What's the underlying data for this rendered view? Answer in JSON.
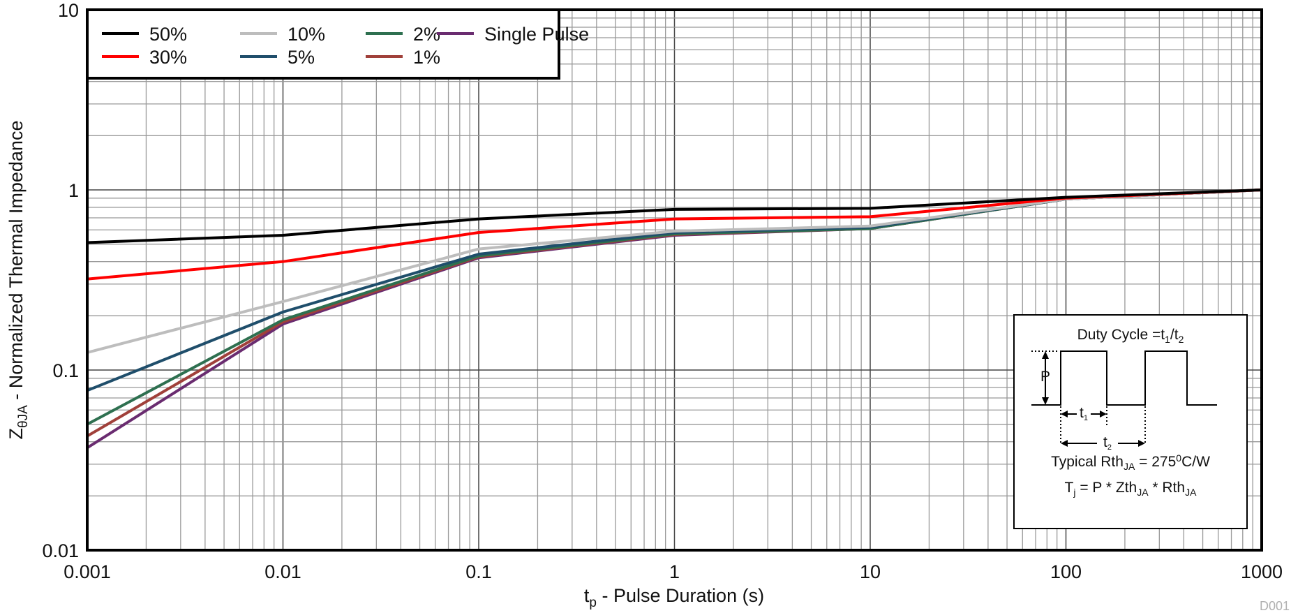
{
  "chart_data": {
    "type": "line",
    "title": "",
    "xlabel": "t_p - Pulse Duration (s)",
    "ylabel": "Z_θJA - Normalized Thermal Impedance",
    "xscale": "log",
    "yscale": "log",
    "xlim": [
      0.001,
      1000
    ],
    "ylim": [
      0.01,
      10
    ],
    "x_ticks": [
      "0.001",
      "0.01",
      "0.1",
      "1",
      "10",
      "100",
      "1000"
    ],
    "y_ticks": [
      "0.01",
      "0.1",
      "1",
      "10"
    ],
    "grid": true,
    "legend_position": "upper-left",
    "x": [
      0.001,
      0.01,
      0.1,
      1,
      10,
      100,
      1000
    ],
    "series": [
      {
        "name": "50%",
        "color": "#000000",
        "values": [
          0.51,
          0.56,
          0.69,
          0.78,
          0.79,
          0.91,
          1.0
        ]
      },
      {
        "name": "30%",
        "color": "#ff0000",
        "values": [
          0.32,
          0.4,
          0.58,
          0.69,
          0.71,
          0.9,
          1.0
        ]
      },
      {
        "name": "10%",
        "color": "#bdbdbd",
        "values": [
          0.125,
          0.24,
          0.47,
          0.59,
          0.63,
          0.89,
          1.0
        ]
      },
      {
        "name": "5%",
        "color": "#1f4e6b",
        "values": [
          0.077,
          0.21,
          0.44,
          0.58,
          0.62,
          0.89,
          1.0
        ]
      },
      {
        "name": "2%",
        "color": "#2e7050",
        "values": [
          0.05,
          0.19,
          0.43,
          0.57,
          0.61,
          0.89,
          1.0
        ]
      },
      {
        "name": "1%",
        "color": "#a0403a",
        "values": [
          0.043,
          0.185,
          0.425,
          0.565,
          0.61,
          0.89,
          1.0
        ]
      },
      {
        "name": "Single Pulse",
        "color": "#6a2c70",
        "values": [
          0.037,
          0.18,
          0.42,
          0.56,
          0.61,
          0.89,
          1.0
        ]
      }
    ]
  },
  "axes": {
    "xlabel_main": "t",
    "xlabel_sub": "p",
    "xlabel_rest": " - Pulse Duration (s)",
    "ylabel_main": "Z",
    "ylabel_sub": "θJA",
    "ylabel_rest": " - Normalized Thermal Impedance"
  },
  "inset": {
    "title_main": "Duty Cycle =t",
    "title_sub1": "1",
    "title_slash": "/t",
    "title_sub2": "2",
    "p_label": "P",
    "t1_label": "t",
    "t1_sub": "1",
    "t2_label": "t",
    "t2_sub": "2",
    "rth_main": "Typical Rth",
    "rth_sub": "JA",
    "rth_value": " = 275",
    "rth_sup": "0",
    "rth_unit": "C/W",
    "tj_main": "T",
    "tj_sub": "j",
    "tj_mid": " = P * Zth",
    "tj_sub2": "JA",
    "tj_mid2": " * Rth",
    "tj_sub3": "JA"
  },
  "figure_code": "D001"
}
